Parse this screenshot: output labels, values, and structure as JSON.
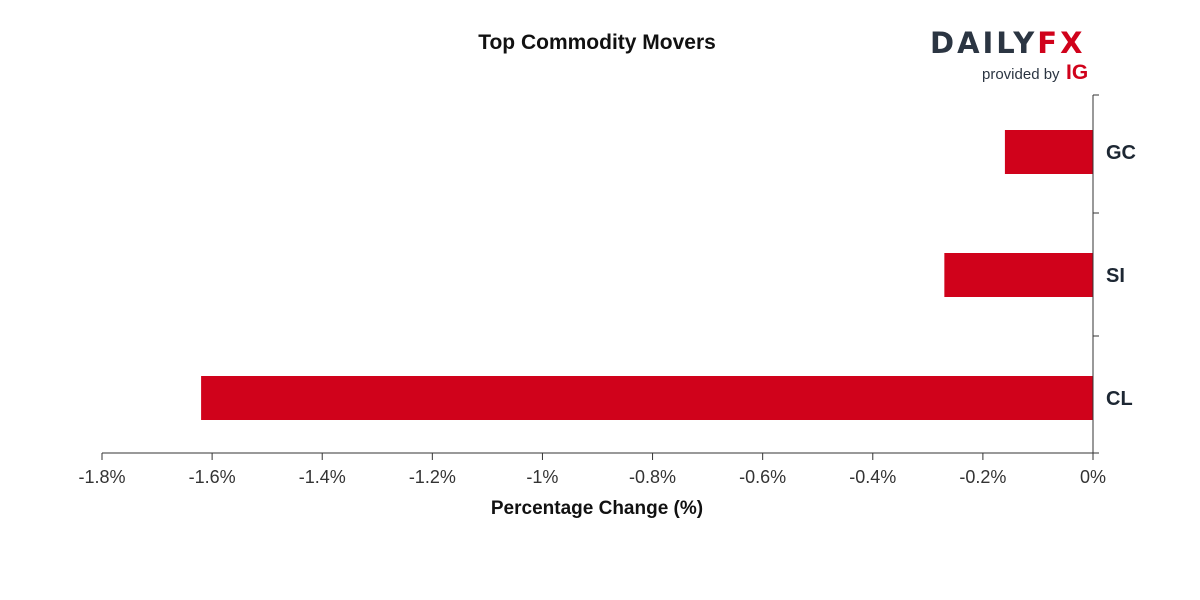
{
  "brand": {
    "wordmark_primary": "DAILY",
    "wordmark_accent": "FX",
    "provided_by": "provided by",
    "ig": "IG"
  },
  "colors": {
    "bar": "#d0021b",
    "axis": "#333333",
    "brand_dark": "#2b3542",
    "brand_red": "#d0021b"
  },
  "chart_data": {
    "type": "bar",
    "orientation": "horizontal",
    "title": "Top Commodity Movers",
    "xlabel": "Percentage Change (%)",
    "ylabel": "",
    "categories": [
      "GC",
      "SI",
      "CL"
    ],
    "values": [
      -0.16,
      -0.27,
      -1.62
    ],
    "xlim": [
      -1.8,
      0
    ],
    "xticks": [
      -1.8,
      -1.6,
      -1.4,
      -1.2,
      -1,
      -0.8,
      -0.6,
      -0.4,
      -0.2,
      0
    ],
    "xtick_labels": [
      "-1.8%",
      "-1.6%",
      "-1.4%",
      "-1.2%",
      "-1%",
      "-0.8%",
      "-0.6%",
      "-0.4%",
      "-0.2%",
      "0%"
    ],
    "grid": false,
    "legend": "none"
  }
}
